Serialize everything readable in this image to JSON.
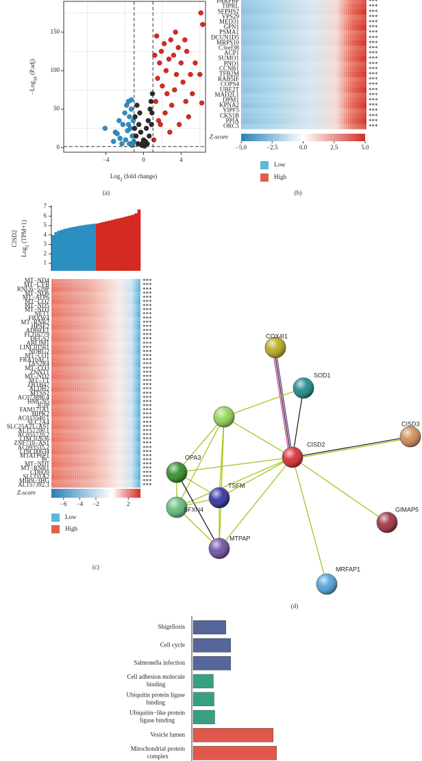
{
  "chart_data": [
    {
      "type": "scatter",
      "x_label": [
        "Log",
        "2",
        " (fold change)"
      ],
      "y_label": [
        "−Log",
        "10",
        " (P.adj)"
      ],
      "xlim": [
        -8.5,
        6.6
      ],
      "ylim": [
        -6,
        190
      ],
      "xticks": [
        {
          "value": -4,
          "label": "−4"
        },
        0,
        4
      ],
      "yticks": [
        0,
        50,
        100,
        150
      ],
      "x_minor_grid": [
        -6,
        -2,
        2,
        6
      ],
      "y_minor_grid": [
        25,
        75,
        125,
        175
      ],
      "x_thresholds": [
        -1,
        1
      ],
      "y_threshold": 1.3,
      "series": [
        {
          "color": "#2b8fc2",
          "x": [
            -4.1,
            -3,
            -2.6,
            -2.2,
            -2,
            -1.8,
            -1.6,
            -1.5,
            -1.4,
            -1.3,
            -1.2,
            -1.1,
            -2.5,
            -3.2,
            -1.9,
            -1.5,
            -1.2,
            -2.8,
            -1.7,
            -1.3,
            -2.3,
            -1.05,
            -1.6
          ],
          "values": [
            25,
            20,
            35,
            30,
            45,
            55,
            60,
            40,
            25,
            50,
            15,
            35,
            12,
            8,
            10,
            5,
            3,
            18,
            22,
            62,
            5,
            8,
            30
          ]
        },
        {
          "color": "#2a2a2a",
          "x": [
            -0.9,
            -0.7,
            -0.5,
            -0.3,
            0,
            0.3,
            0.5,
            0.8,
            0.9,
            -0.8,
            -0.6,
            -0.2,
            0.2,
            0.6,
            0.95,
            0.7,
            -0.4,
            0.1,
            -0.95,
            0.4,
            0.85,
            -0.1
          ],
          "values": [
            40,
            55,
            30,
            20,
            10,
            25,
            35,
            60,
            45,
            15,
            5,
            3,
            8,
            15,
            70,
            50,
            45,
            2,
            25,
            5,
            30,
            6
          ]
        },
        {
          "color": "#d42a22",
          "x": [
            1.1,
            1.3,
            1.5,
            1.7,
            1.9,
            2,
            2.2,
            2.4,
            2.5,
            2.7,
            2.9,
            3,
            3.2,
            3.4,
            3.5,
            3.7,
            4,
            4.2,
            4.5,
            4.8,
            5,
            5.5,
            6.1,
            6.3,
            6.2,
            6,
            3.8,
            2.8,
            1.6,
            2.3,
            4.4,
            3.3,
            1.2,
            1.4,
            5.2,
            4.6,
            1.8
          ],
          "values": [
            10,
            60,
            90,
            110,
            125,
            80,
            135,
            100,
            70,
            115,
            140,
            55,
            120,
            150,
            95,
            130,
            110,
            85,
            60,
            40,
            95,
            110,
            175,
            160,
            58,
            95,
            30,
            20,
            35,
            45,
            140,
            75,
            120,
            145,
            70,
            125,
            30
          ]
        }
      ]
    },
    {
      "type": "heatmap",
      "rows": [
        "PARPBP",
        "TIPRL",
        "SEPHS2",
        "VPS29",
        "MED31",
        "GPN1",
        "PSMA1",
        "DCUN1D5",
        "MRPS10",
        "C3orf38",
        "ACP1",
        "SUMO1",
        "PNO1",
        "CCNB1",
        "TFB2M",
        "RAB5IF",
        "COPS4",
        "UBE2T",
        "MAD2L1",
        "DPM1",
        "KPNA2",
        "YIPF5",
        "CKS1B",
        "PPIA",
        "ORC5"
      ],
      "row_mark": "***",
      "colorbar": {
        "label": "Z-score",
        "colors": [
          "#2a7fb8",
          "#ffffff",
          "#d22f27"
        ],
        "lim": [
          -5,
          5
        ],
        "ticks": [
          {
            "value": -5,
            "label": "−5.0"
          },
          {
            "value": -2.5,
            "label": "−2.5"
          },
          {
            "value": 0,
            "label": "0.0"
          },
          {
            "value": 2.5,
            "label": "2.5"
          },
          {
            "value": 5,
            "label": "5.0"
          }
        ]
      },
      "legend": [
        {
          "name": "Low",
          "color": "#5bb8d8"
        },
        {
          "name": "High",
          "color": "#e0604e"
        }
      ]
    },
    {
      "type": "bar",
      "y_title": "CISD2",
      "y_label": [
        "Log",
        "2",
        " (TPM+1)"
      ],
      "ylim": [
        0.2,
        7
      ],
      "yticks": [
        1,
        2,
        3,
        4,
        5,
        6,
        7
      ],
      "series": [
        {
          "color": "#2b8fc2",
          "values": [
            4.0,
            4.3,
            4.45,
            4.55,
            4.65,
            4.72,
            4.8,
            4.86,
            4.92,
            4.98,
            5.03,
            5.08,
            5.12,
            5.16,
            5.2
          ]
        },
        {
          "color": "#d42a22",
          "values": [
            5.22,
            5.3,
            5.38,
            5.45,
            5.52,
            5.6,
            5.68,
            5.75,
            5.82,
            5.9,
            5.98,
            6.06,
            6.15,
            6.3,
            6.7
          ]
        }
      ]
    },
    {
      "type": "heatmap",
      "rows": [
        "MT−ND4",
        "MT−CYB",
        "RNU6−529P",
        "MT−ND6",
        "MT−ATP6",
        "MT−CO2",
        "MT−ND5",
        "MT−ND3",
        "NET1",
        "FBXW4",
        "MT−RNR2",
        "HPSE2",
        "ADHFE1",
        "FLJ16779",
        "DEGS2",
        "ABLIM1",
        "LINC01561",
        "NDRG2",
        "MT−CO1",
        "FRA10AC1",
        "TAS2R4",
        "MT−CO3",
        "ZNNT1",
        "MT−ND2",
        "MT−TT",
        "ZBTB47",
        "ALDH2",
        "MTSS2",
        "AC073896.4",
        "HMGN5",
        "IGIP",
        "FAM171A1",
        "HIPK2",
        "AC015540.1",
        "SLC2A4",
        "SLC25A21−AS1",
        "AL157700.1",
        "AC055720.2",
        "LINC02636",
        "ZNF710−AS1",
        "AC093535.2",
        "LINC00634",
        "MTATP6P1",
        "PC",
        "MT−ND1",
        "MT−RNR1",
        "CDH20",
        "SLCO1A2",
        "MIR9−3HG",
        "AL157392.3"
      ],
      "row_mark": "***",
      "colorbar": {
        "label": "Z-score",
        "colors": [
          "#2a7fb8",
          "#ffffff",
          "#d22f27"
        ],
        "lim": [
          -7.5,
          3.5
        ],
        "ticks": [
          {
            "value": -6,
            "label": "−6"
          },
          {
            "value": -4,
            "label": "−4"
          },
          {
            "value": -2,
            "label": "−2"
          },
          2
        ]
      },
      "legend": [
        {
          "name": "Low",
          "color": "#5bb8d8"
        },
        {
          "name": "High",
          "color": "#e0604e"
        }
      ]
    },
    {
      "type": "barh",
      "categories": [
        [
          "Shigellosis"
        ],
        [
          "Cell cycle"
        ],
        [
          "Salmonella infection"
        ],
        [
          "Cell adhesion molecule",
          "binding"
        ],
        [
          "Ubiquitin protein ligase",
          "binding"
        ],
        [
          "Ubiquitin−like protein",
          "ligase binding"
        ],
        [
          "Vesicle lumen"
        ],
        [
          "Mitochondrial protein",
          "complex"
        ]
      ],
      "values": [
        47,
        54,
        54,
        29,
        30,
        31,
        115,
        120
      ],
      "colors": [
        "#56659a",
        "#56659a",
        "#56659a",
        "#37a083",
        "#37a083",
        "#37a083",
        "#e2574c",
        "#e2574c"
      ],
      "xlim": [
        0,
        130
      ]
    }
  ],
  "network": {
    "nodes": [
      {
        "label": "COX4I1",
        "color": "#b5a818"
      },
      {
        "label": "SOD1",
        "color": "#16858a"
      },
      {
        "color": "#8ed24c"
      },
      {
        "label": "CISD3",
        "color": "#d08a50"
      },
      {
        "label": "CISD2",
        "color": "#d6262a"
      },
      {
        "label": "OPA3",
        "color": "#2a8a20"
      },
      {
        "label": "TSFM",
        "color": "#2c2c9c"
      },
      {
        "label": "SFXN4",
        "color": "#5fb87a"
      },
      {
        "label": "MTPAP",
        "color": "#6a4aa0"
      },
      {
        "label": "GIMAP5",
        "color": "#9c2a3a"
      },
      {
        "label": "MRFAP1",
        "color": "#4aa0d8"
      }
    ],
    "edges": [
      [
        0,
        4,
        "#7b2a9a"
      ],
      [
        0,
        4,
        "#222222"
      ],
      [
        0,
        4,
        "#d040a0"
      ],
      [
        1,
        4,
        "#222222"
      ],
      [
        2,
        1,
        "#a6c21a"
      ],
      [
        2,
        4,
        "#a6c21a"
      ],
      [
        4,
        3,
        "#222222"
      ],
      [
        4,
        3,
        "#a6c21a"
      ],
      [
        4,
        9,
        "#a6c21a"
      ],
      [
        4,
        10,
        "#a6c21a"
      ],
      [
        4,
        6,
        "#a6c21a"
      ],
      [
        4,
        5,
        "#a6c21a"
      ],
      [
        4,
        7,
        "#a6c21a"
      ],
      [
        4,
        8,
        "#a6c21a"
      ],
      [
        2,
        5,
        "#a6c21a"
      ],
      [
        2,
        6,
        "#a6c21a"
      ],
      [
        2,
        7,
        "#a6c21a"
      ],
      [
        2,
        8,
        "#a6c21a"
      ],
      [
        5,
        6,
        "#a6c21a"
      ],
      [
        5,
        7,
        "#a6c21a"
      ],
      [
        5,
        8,
        "#222222"
      ],
      [
        6,
        7,
        "#a6c21a"
      ],
      [
        6,
        8,
        "#a6c21a"
      ],
      [
        7,
        8,
        "#a6c21a"
      ]
    ]
  },
  "panel_labels": [
    "(a)",
    "(b)",
    "(c)",
    "(d)"
  ]
}
